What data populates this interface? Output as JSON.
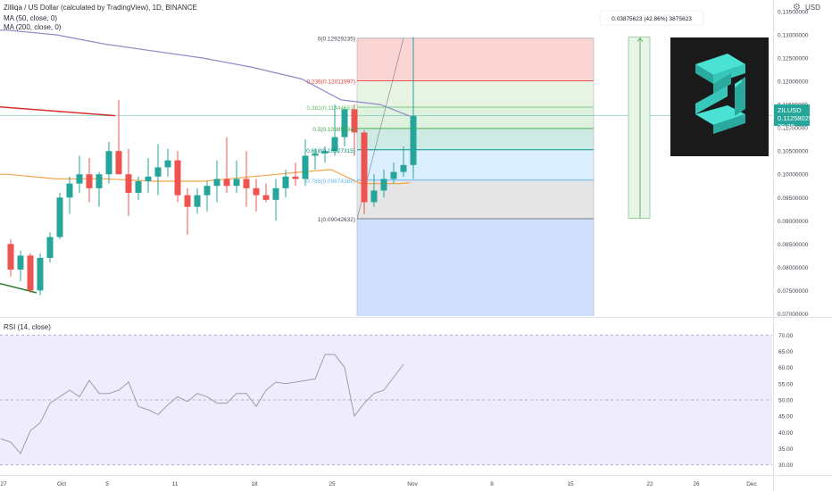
{
  "header": {
    "title": "Zilliqa / US Dollar (calculated by TradingView), 1D, BINANCE",
    "ma50_label": "MA (50, close, 0)",
    "ma200_label": "MA (200, close, 0)",
    "ma50_color": "#f5a54a",
    "ma200_color": "#8f89c9",
    "corner_icon": "gear-icon",
    "corner_label": "USD"
  },
  "price_label": {
    "symbol": "ZILUSD",
    "price": "0.11258029",
    "countdown": "29:29",
    "color": "#26a69a"
  },
  "logo": {
    "icon": "zilliqa-logo-icon",
    "bg": "#1a1a1a",
    "color": "#2ec7b9"
  },
  "measure": {
    "text": "0.03875623 (42.86%) 3875623",
    "color": "#4caf50"
  },
  "rsi": {
    "label": "RSI (14, close)",
    "color": "#9e9ab8",
    "band_color": "#efedfb"
  },
  "chart_data": [
    {
      "type": "candlestick",
      "y_axis_ticks": [
        "0.07000000",
        "0.07500000",
        "0.08000000",
        "0.08500000",
        "0.09000000",
        "0.09500000",
        "0.10000000",
        "0.10500000",
        "0.11000000",
        "0.11500000",
        "0.12000000",
        "0.12500000",
        "0.13000000",
        "0.13500000"
      ],
      "x_axis_ticks": [
        "27",
        "Oct",
        "5",
        "11",
        "18",
        "25",
        "Nov",
        "8",
        "15",
        "22",
        "26",
        "Dec"
      ],
      "ylim": [
        0.0695,
        0.1375
      ],
      "up_color": "#26a69a",
      "down_color": "#ef5350",
      "candles": [
        {
          "o": 0.085,
          "h": 0.086,
          "l": 0.078,
          "c": 0.0795
        },
        {
          "o": 0.0795,
          "h": 0.0835,
          "l": 0.077,
          "c": 0.0825
        },
        {
          "o": 0.0825,
          "h": 0.083,
          "l": 0.0745,
          "c": 0.075
        },
        {
          "o": 0.075,
          "h": 0.083,
          "l": 0.074,
          "c": 0.082
        },
        {
          "o": 0.082,
          "h": 0.0875,
          "l": 0.081,
          "c": 0.0865
        },
        {
          "o": 0.0865,
          "h": 0.096,
          "l": 0.086,
          "c": 0.095
        },
        {
          "o": 0.095,
          "h": 0.0995,
          "l": 0.0915,
          "c": 0.098
        },
        {
          "o": 0.098,
          "h": 0.104,
          "l": 0.096,
          "c": 0.1
        },
        {
          "o": 0.1,
          "h": 0.1035,
          "l": 0.094,
          "c": 0.097
        },
        {
          "o": 0.097,
          "h": 0.1005,
          "l": 0.093,
          "c": 0.1
        },
        {
          "o": 0.1,
          "h": 0.107,
          "l": 0.098,
          "c": 0.105
        },
        {
          "o": 0.105,
          "h": 0.116,
          "l": 0.1,
          "c": 0.1
        },
        {
          "o": 0.1,
          "h": 0.1055,
          "l": 0.091,
          "c": 0.096
        },
        {
          "o": 0.096,
          "h": 0.0995,
          "l": 0.0945,
          "c": 0.0985
        },
        {
          "o": 0.0985,
          "h": 0.1035,
          "l": 0.096,
          "c": 0.0995
        },
        {
          "o": 0.0995,
          "h": 0.1065,
          "l": 0.0955,
          "c": 0.1015
        },
        {
          "o": 0.1015,
          "h": 0.1055,
          "l": 0.0995,
          "c": 0.103
        },
        {
          "o": 0.103,
          "h": 0.105,
          "l": 0.094,
          "c": 0.0955
        },
        {
          "o": 0.0955,
          "h": 0.097,
          "l": 0.087,
          "c": 0.093
        },
        {
          "o": 0.093,
          "h": 0.097,
          "l": 0.0915,
          "c": 0.0955
        },
        {
          "o": 0.0955,
          "h": 0.0985,
          "l": 0.092,
          "c": 0.0975
        },
        {
          "o": 0.0975,
          "h": 0.103,
          "l": 0.094,
          "c": 0.099
        },
        {
          "o": 0.099,
          "h": 0.108,
          "l": 0.096,
          "c": 0.0975
        },
        {
          "o": 0.0975,
          "h": 0.103,
          "l": 0.096,
          "c": 0.099
        },
        {
          "o": 0.099,
          "h": 0.105,
          "l": 0.093,
          "c": 0.097
        },
        {
          "o": 0.097,
          "h": 0.099,
          "l": 0.092,
          "c": 0.0955
        },
        {
          "o": 0.0955,
          "h": 0.098,
          "l": 0.094,
          "c": 0.0945
        },
        {
          "o": 0.0945,
          "h": 0.099,
          "l": 0.09,
          "c": 0.097
        },
        {
          "o": 0.097,
          "h": 0.101,
          "l": 0.095,
          "c": 0.0995
        },
        {
          "o": 0.0995,
          "h": 0.1025,
          "l": 0.0975,
          "c": 0.099
        },
        {
          "o": 0.099,
          "h": 0.1075,
          "l": 0.0975,
          "c": 0.104
        },
        {
          "o": 0.104,
          "h": 0.1055,
          "l": 0.101,
          "c": 0.1045
        },
        {
          "o": 0.1045,
          "h": 0.106,
          "l": 0.1025,
          "c": 0.105
        },
        {
          "o": 0.105,
          "h": 0.115,
          "l": 0.104,
          "c": 0.108
        },
        {
          "o": 0.108,
          "h": 0.1145,
          "l": 0.106,
          "c": 0.114
        },
        {
          "o": 0.114,
          "h": 0.115,
          "l": 0.104,
          "c": 0.109
        },
        {
          "o": 0.109,
          "h": 0.1095,
          "l": 0.0915,
          "c": 0.094
        },
        {
          "o": 0.094,
          "h": 0.1,
          "l": 0.093,
          "c": 0.0965
        },
        {
          "o": 0.0965,
          "h": 0.101,
          "l": 0.095,
          "c": 0.099
        },
        {
          "o": 0.099,
          "h": 0.1025,
          "l": 0.098,
          "c": 0.1005
        },
        {
          "o": 0.1005,
          "h": 0.106,
          "l": 0.0995,
          "c": 0.102
        },
        {
          "o": 0.102,
          "h": 0.1295,
          "l": 0.099,
          "c": 0.1126
        }
      ],
      "fibonacci": {
        "levels": [
          {
            "ratio": "0",
            "value": "0.12929235",
            "y": 0.12929235,
            "line": "#b2b5be",
            "fill": "#fbd4d4",
            "text": "#434651"
          },
          {
            "ratio": "0.236",
            "value": "0.12011997",
            "y": 0.12011997,
            "line": "#ef5350",
            "fill": "#e7f4e3",
            "text": "#e53935"
          },
          {
            "ratio": "0.382",
            "value": "0.11444553",
            "y": 0.11444553,
            "line": "#81c784",
            "fill": "#dff1df",
            "text": "#66bb6a"
          },
          {
            "ratio": "0.5",
            "value": "0.10985934",
            "y": 0.10985934,
            "line": "#4caf50",
            "fill": "#cdebe4",
            "text": "#43a047"
          },
          {
            "ratio": "0.618",
            "value": "0.10527315",
            "y": 0.10527315,
            "line": "#009688",
            "fill": "#dcefff",
            "text": "#00897b"
          },
          {
            "ratio": "0.786",
            "value": "0.09874369",
            "y": 0.09874369,
            "line": "#64b5f6",
            "fill": "#e6e6e6",
            "text": "#64b5f6"
          },
          {
            "ratio": "1",
            "value": "0.09042632",
            "y": 0.09042632,
            "line": "#787b86",
            "fill": "#d1dfff",
            "text": "#434651"
          }
        ],
        "extension_bottom": 0.0695
      },
      "horizontal_line": 0.1126,
      "ma50": [
        [
          0,
          0.1
        ],
        [
          5,
          0.099
        ],
        [
          10,
          0.099
        ],
        [
          15,
          0.0985
        ],
        [
          20,
          0.0985
        ],
        [
          25,
          0.0995
        ],
        [
          30,
          0.1005
        ],
        [
          33,
          0.101
        ],
        [
          36,
          0.098
        ],
        [
          40,
          0.098
        ],
        [
          41,
          0.0982
        ]
      ],
      "ma200": [
        [
          0,
          0.131
        ],
        [
          5,
          0.13
        ],
        [
          10,
          0.128
        ],
        [
          15,
          0.1265
        ],
        [
          20,
          0.125
        ],
        [
          25,
          0.123
        ],
        [
          30,
          0.1205
        ],
        [
          34,
          0.116
        ],
        [
          38,
          0.115
        ],
        [
          41,
          0.1125
        ]
      ],
      "red_segment": [
        [
          0,
          0.1145
        ],
        [
          5,
          0.1126
        ]
      ],
      "green_segment": [
        [
          0,
          0.0765
        ],
        [
          2,
          0.0745
        ]
      ]
    },
    {
      "type": "line",
      "title": "RSI (14, close)",
      "y_axis_ticks": [
        "30.00",
        "35.00",
        "40.00",
        "45.00",
        "50.00",
        "55.00",
        "60.00",
        "65.00",
        "70.00"
      ],
      "ylim": [
        28,
        72
      ],
      "bands": [
        30,
        50,
        70
      ],
      "values": [
        38,
        37,
        33.5,
        40.5,
        43,
        49,
        51,
        53,
        51,
        56,
        52,
        52,
        53,
        55.5,
        48,
        47,
        45.5,
        48.5,
        51,
        49.5,
        52,
        51,
        49,
        49,
        52,
        52,
        48,
        53,
        55.5,
        55,
        55.5,
        56,
        56.5,
        64,
        64,
        60,
        45,
        49,
        52,
        53,
        57,
        61
      ]
    }
  ]
}
